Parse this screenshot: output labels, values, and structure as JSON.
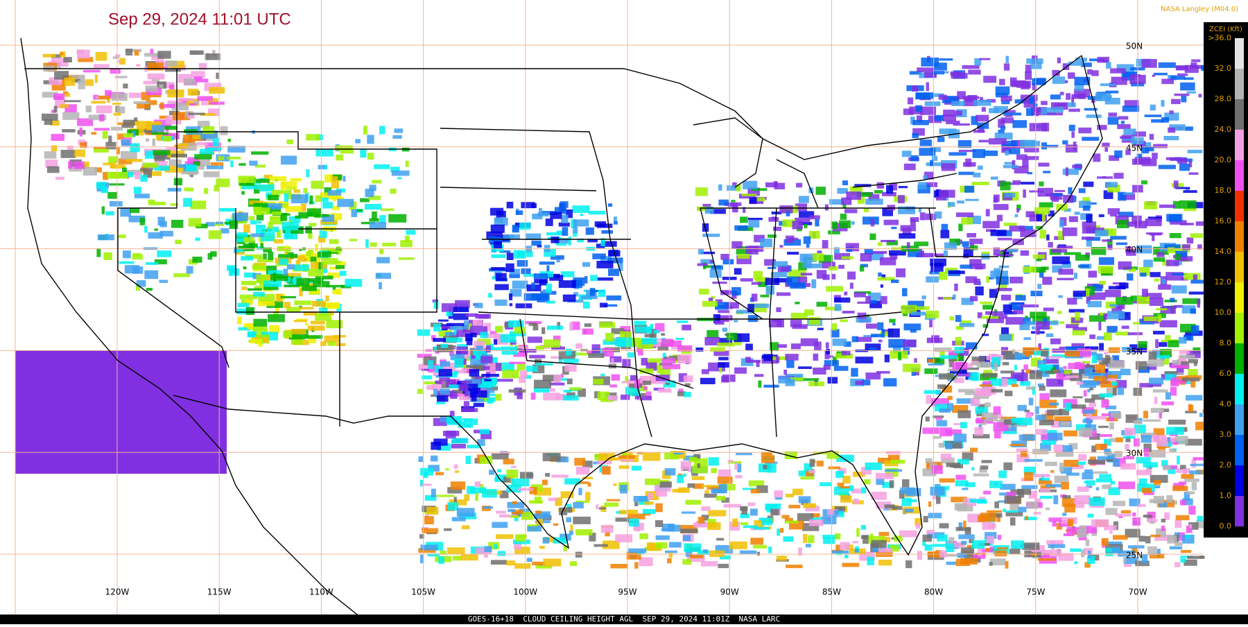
{
  "header": {
    "timestamp": "Sep 29, 2024 11:01 UTC",
    "credit": "NASA Langley (M04.0)"
  },
  "legend": {
    "title": "ZCEI (Kft)",
    "labels": [
      ">36.0",
      "32.0",
      "28.0",
      "24.0",
      "20.0",
      "18.0",
      "16.0",
      "14.0",
      "12.0",
      "10.0",
      "8.0",
      "6.0",
      "4.0",
      "3.0",
      "2.0",
      "1.0",
      "0.0"
    ],
    "colors": [
      "#e4e4e4",
      "#b4b4b4",
      "#707070",
      "#f4a0e0",
      "#f050f0",
      "#f03000",
      "#f08000",
      "#f0c000",
      "#f0f000",
      "#a0f000",
      "#00b000",
      "#00f0f0",
      "#40a0f0",
      "#0060f0",
      "#0000e0",
      "#8030e0"
    ]
  },
  "map": {
    "longitude_labels": [
      "120W",
      "115W",
      "110W",
      "105W",
      "100W",
      "95W",
      "90W",
      "85W",
      "80W",
      "75W",
      "70W"
    ],
    "latitude_labels": [
      "50N",
      "45N",
      "40N",
      "35N",
      "30N",
      "25N"
    ]
  },
  "footer": {
    "caption": "GOES-16+18  CLOUD CEILING HEIGHT AGL  SEP 29, 2024 11:01Z  NASA LARC"
  }
}
